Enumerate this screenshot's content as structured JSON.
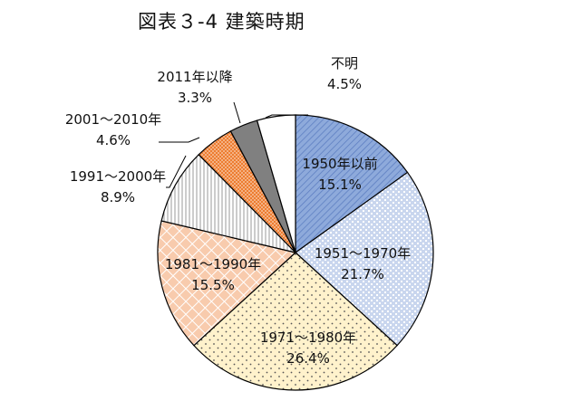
{
  "chart_data": {
    "type": "pie",
    "title": "図表３-4 建築時期",
    "start_angle": "top",
    "direction": "clockwise",
    "slices": [
      {
        "label": "1950年以前",
        "value": 15.1,
        "pct": "15.1%",
        "color": "#8eaadb",
        "pattern": "diagonal-hatch"
      },
      {
        "label": "1951～1970年",
        "value": 21.7,
        "pct": "21.7%",
        "color": "#dae3f3",
        "pattern": "dotted-grid"
      },
      {
        "label": "1971～1980年",
        "value": 26.4,
        "pct": "26.4%",
        "color": "#fff2cc",
        "pattern": "dots"
      },
      {
        "label": "1981～1990年",
        "value": 15.5,
        "pct": "15.5%",
        "color": "#f8cbad",
        "pattern": "diamond-lattice"
      },
      {
        "label": "1991～2000年",
        "value": 8.9,
        "pct": "8.9%",
        "color": "#ffffff",
        "pattern": "vertical-stripes"
      },
      {
        "label": "2001～2010年",
        "value": 4.6,
        "pct": "4.6%",
        "color": "#ed7d31",
        "pattern": "checker"
      },
      {
        "label": "2011年以降",
        "value": 3.3,
        "pct": "3.3%",
        "color": "#808080",
        "pattern": "solid"
      },
      {
        "label": "不明",
        "value": 4.5,
        "pct": "4.5%",
        "color": "#ffffff",
        "pattern": "solid"
      }
    ]
  }
}
